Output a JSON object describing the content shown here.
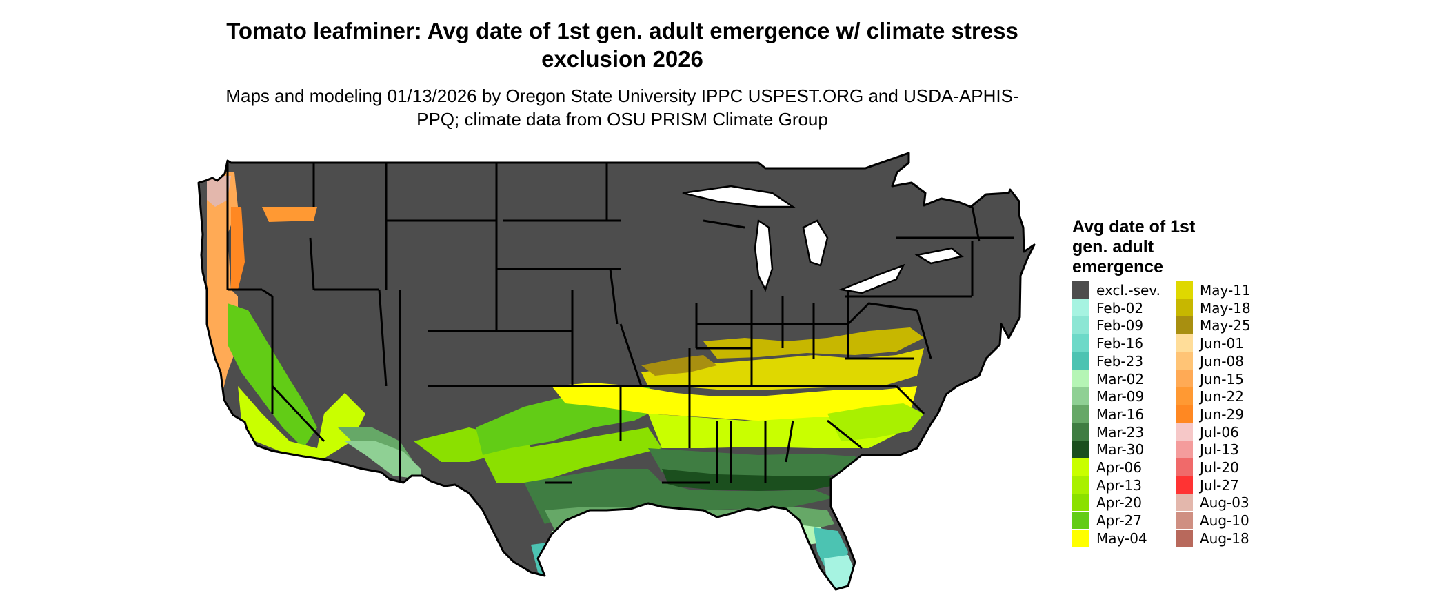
{
  "title": "Tomato leafminer: Avg date of 1st gen. adult emergence w/ climate stress exclusion 2026",
  "subtitle": "Maps and modeling 01/13/2026 by Oregon State University IPPC USPEST.ORG and USDA-APHIS-PPQ; climate data from OSU PRISM Climate Group",
  "map": {
    "excluded_color": "#4d4d4d",
    "state_border_color": "#000000"
  },
  "legend": {
    "title": "Avg date of 1st gen. adult emergence",
    "items": [
      {
        "label": "excl.-sev.",
        "color": "#4d4d4d"
      },
      {
        "label": "Feb-02",
        "color": "#a6f3e1"
      },
      {
        "label": "Feb-09",
        "color": "#8ce6d4"
      },
      {
        "label": "Feb-16",
        "color": "#6dd9c8"
      },
      {
        "label": "Feb-23",
        "color": "#4cc3b2"
      },
      {
        "label": "Mar-02",
        "color": "#b5f5b5"
      },
      {
        "label": "Mar-09",
        "color": "#8fd094"
      },
      {
        "label": "Mar-16",
        "color": "#66a867"
      },
      {
        "label": "Mar-23",
        "color": "#3f7d42"
      },
      {
        "label": "Mar-30",
        "color": "#1b4f1e"
      },
      {
        "label": "Apr-06",
        "color": "#c9ff00"
      },
      {
        "label": "Apr-13",
        "color": "#a9f000"
      },
      {
        "label": "Apr-20",
        "color": "#8be000"
      },
      {
        "label": "Apr-27",
        "color": "#62cc16"
      },
      {
        "label": "May-04",
        "color": "#ffff00"
      },
      {
        "label": "May-11",
        "color": "#dfd800"
      },
      {
        "label": "May-18",
        "color": "#c7b700"
      },
      {
        "label": "May-25",
        "color": "#a88f10"
      },
      {
        "label": "Jun-01",
        "color": "#ffdd99"
      },
      {
        "label": "Jun-08",
        "color": "#ffc476"
      },
      {
        "label": "Jun-15",
        "color": "#ffaa55"
      },
      {
        "label": "Jun-22",
        "color": "#ff9933"
      },
      {
        "label": "Jun-29",
        "color": "#ff8822"
      },
      {
        "label": "Jul-06",
        "color": "#f6c8c8"
      },
      {
        "label": "Jul-13",
        "color": "#f49c9c"
      },
      {
        "label": "Jul-20",
        "color": "#f06a6a"
      },
      {
        "label": "Jul-27",
        "color": "#ff3333"
      },
      {
        "label": "Aug-03",
        "color": "#e3b7ac"
      },
      {
        "label": "Aug-10",
        "color": "#cf8f82"
      },
      {
        "label": "Aug-18",
        "color": "#b8695c"
      }
    ]
  }
}
